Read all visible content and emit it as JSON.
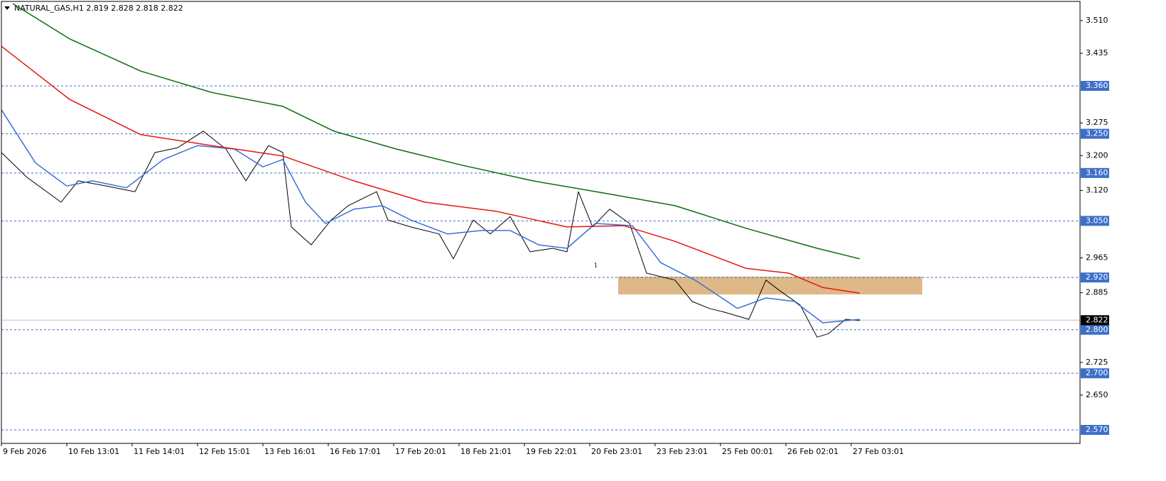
{
  "chart_data": {
    "type": "line",
    "title": "NATURAL_GAS,H1  2.819 2.828 2.818 2.822",
    "xlim": [
      0,
      379.5
    ],
    "ylim": [
      2.539,
      3.554
    ],
    "xticks": [
      {
        "value": 0,
        "label": "9 Feb 2026"
      },
      {
        "value": 23,
        "label": "10 Feb 13:01"
      },
      {
        "value": 46,
        "label": "11 Feb 14:01"
      },
      {
        "value": 69,
        "label": "12 Feb 15:01"
      },
      {
        "value": 92,
        "label": "13 Feb 16:01"
      },
      {
        "value": 115,
        "label": "16 Feb 17:01"
      },
      {
        "value": 138,
        "label": "17 Feb 20:01"
      },
      {
        "value": 161,
        "label": "18 Feb 21:01"
      },
      {
        "value": 184,
        "label": "19 Feb 22:01"
      },
      {
        "value": 207,
        "label": "20 Feb 23:01"
      },
      {
        "value": 230,
        "label": "23 Feb 23:01"
      },
      {
        "value": 253,
        "label": "25 Feb 00:01"
      },
      {
        "value": 276,
        "label": "26 Feb 02:01"
      },
      {
        "value": 299,
        "label": "27 Feb 03:01"
      }
    ],
    "yticks": [
      {
        "value": 3.51,
        "label": "3.510"
      },
      {
        "value": 3.435,
        "label": "3.435"
      },
      {
        "value": 3.275,
        "label": "3.275"
      },
      {
        "value": 3.2,
        "label": "3.200"
      },
      {
        "value": 3.12,
        "label": "3.120"
      },
      {
        "value": 2.965,
        "label": "2.965"
      },
      {
        "value": 2.885,
        "label": "2.885"
      },
      {
        "value": 2.725,
        "label": "2.725"
      },
      {
        "value": 2.65,
        "label": "2.650"
      }
    ],
    "levels": [
      {
        "value": 3.36,
        "label": "3.360"
      },
      {
        "value": 3.25,
        "label": "3.250"
      },
      {
        "value": 3.16,
        "label": "3.160"
      },
      {
        "value": 3.05,
        "label": "3.050"
      },
      {
        "value": 2.92,
        "label": "2.920"
      },
      {
        "value": 2.8,
        "label": "2.800"
      },
      {
        "value": 2.7,
        "label": "2.700"
      },
      {
        "value": 2.57,
        "label": "2.570"
      }
    ],
    "level_color": "#3d6fc9",
    "current": {
      "value": 2.822,
      "label": "2.822"
    },
    "zone": {
      "x": [
        217,
        324
      ],
      "y": [
        2.881,
        2.922
      ],
      "color": "#deb887"
    },
    "annotation": "1",
    "series": [
      {
        "color": "#000000",
        "width": 1,
        "x": [
          0,
          9,
          21,
          27,
          37,
          47,
          54,
          62,
          71,
          79,
          86,
          94,
          99,
          102,
          109,
          116,
          122,
          132,
          136,
          144,
          154,
          159,
          166,
          172,
          179,
          186,
          194,
          199,
          203,
          208,
          214,
          221,
          227,
          237,
          243,
          249,
          254,
          263,
          269,
          274,
          281,
          287,
          291,
          297,
          302
        ],
        "values": [
          3.207,
          3.15,
          3.093,
          3.142,
          3.13,
          3.117,
          3.207,
          3.218,
          3.256,
          3.215,
          3.142,
          3.223,
          3.207,
          3.036,
          2.995,
          3.052,
          3.085,
          3.117,
          3.052,
          3.036,
          3.02,
          2.963,
          3.052,
          3.02,
          3.06,
          2.979,
          2.987,
          2.979,
          3.117,
          3.036,
          3.077,
          3.044,
          2.93,
          2.914,
          2.865,
          2.849,
          2.841,
          2.824,
          2.914,
          2.889,
          2.857,
          2.783,
          2.791,
          2.824,
          2.821
        ]
      },
      {
        "color": "#3a6fd8",
        "width": 1.5,
        "x": [
          0,
          12,
          23,
          32,
          44,
          57,
          69,
          82,
          92,
          99,
          107,
          114,
          124,
          134,
          144,
          157,
          169,
          179,
          189,
          199,
          209,
          222,
          232,
          244,
          259,
          269,
          279,
          289,
          302
        ],
        "values": [
          3.305,
          3.183,
          3.13,
          3.142,
          3.126,
          3.191,
          3.223,
          3.215,
          3.174,
          3.191,
          3.093,
          3.044,
          3.077,
          3.085,
          3.052,
          3.02,
          3.028,
          3.028,
          2.995,
          2.987,
          3.044,
          3.039,
          2.954,
          2.914,
          2.849,
          2.873,
          2.865,
          2.816,
          2.824
        ]
      },
      {
        "color": "#e8150f",
        "width": 1.5,
        "x": [
          0,
          24,
          49,
          74,
          99,
          124,
          149,
          174,
          199,
          219,
          237,
          262,
          277,
          289,
          302
        ],
        "values": [
          3.451,
          3.329,
          3.248,
          3.223,
          3.199,
          3.142,
          3.093,
          3.072,
          3.036,
          3.039,
          3.003,
          2.941,
          2.93,
          2.897,
          2.884
        ]
      },
      {
        "color": "#0b6b0b",
        "width": 1.5,
        "x": [
          4,
          24,
          49,
          74,
          99,
          117,
          139,
          162,
          187,
          212,
          237,
          262,
          287,
          302
        ],
        "values": [
          3.549,
          3.468,
          3.394,
          3.345,
          3.313,
          3.256,
          3.215,
          3.178,
          3.142,
          3.114,
          3.085,
          3.033,
          2.987,
          2.963
        ]
      }
    ]
  }
}
